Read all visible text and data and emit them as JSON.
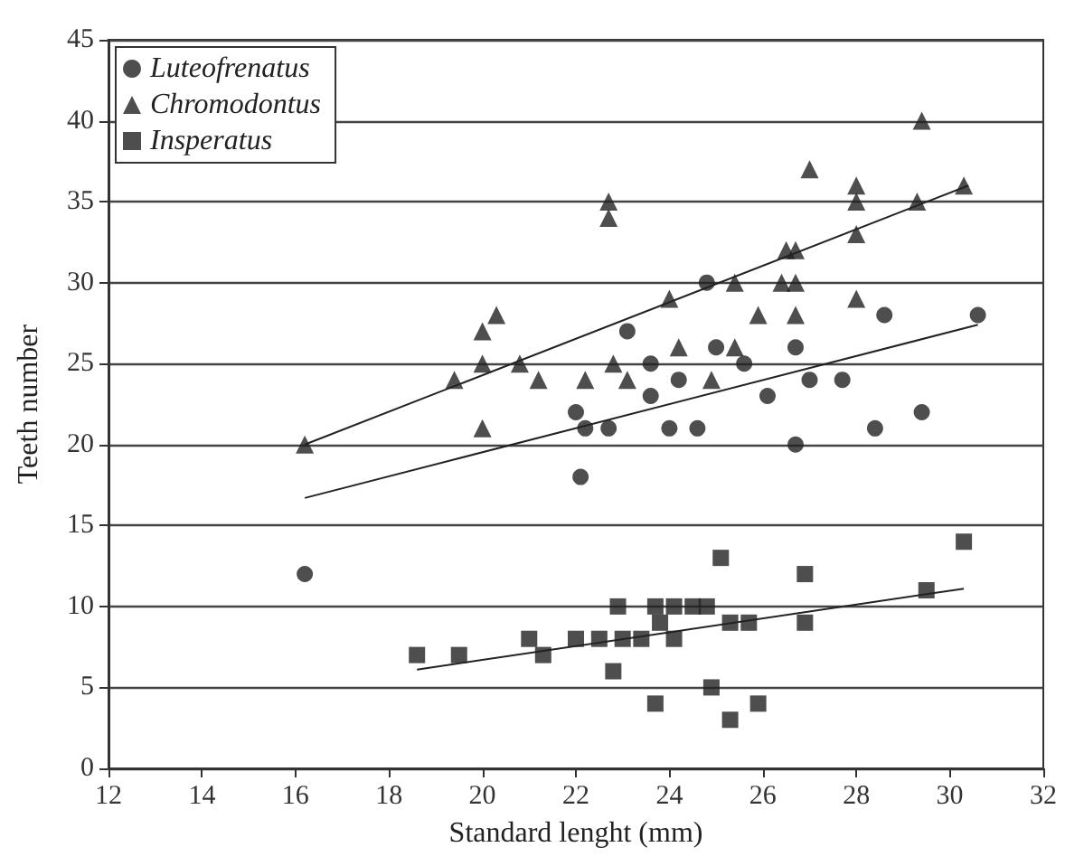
{
  "chart_data": {
    "type": "scatter",
    "xlabel": "Standard lenght (mm)",
    "ylabel": "Teeth number",
    "xlim": [
      12,
      32
    ],
    "xticks": [
      12,
      14,
      16,
      18,
      20,
      22,
      24,
      26,
      28,
      30,
      32
    ],
    "ylim": [
      0,
      45
    ],
    "yticks": [
      0,
      5,
      10,
      15,
      20,
      25,
      30,
      35,
      40,
      45
    ],
    "grid": "y",
    "legend": "top left",
    "series": [
      {
        "name": "Luteofrenatus",
        "type": "scatter",
        "marker": "circle",
        "color": "#222222",
        "x": [
          16.2,
          23.1,
          23.6,
          23.6,
          22.0,
          22.2,
          22.7,
          22.1,
          24.8,
          24.2,
          24.0,
          24.6,
          25.0,
          25.6,
          26.1,
          26.7,
          26.7,
          27.0,
          27.7,
          28.6,
          28.4,
          29.4,
          30.6
        ],
        "values": [
          12,
          27,
          25,
          23,
          22,
          21,
          21,
          18,
          30,
          24,
          21,
          21,
          26,
          25,
          23,
          26,
          20,
          24,
          24,
          28,
          21,
          22,
          28
        ]
      },
      {
        "name": "Chromodontus",
        "type": "scatter",
        "marker": "triangle",
        "color": "#222222",
        "x": [
          16.2,
          19.4,
          20.0,
          20.3,
          20.0,
          20.0,
          20.8,
          21.2,
          22.2,
          22.8,
          22.7,
          22.7,
          23.1,
          24.0,
          24.2,
          24.9,
          25.4,
          25.4,
          25.9,
          26.4,
          26.7,
          26.5,
          26.7,
          26.7,
          27.0,
          28.0,
          28.0,
          28.0,
          28.0,
          29.3,
          29.4,
          30.3
        ],
        "values": [
          20,
          24,
          25,
          28,
          27,
          21,
          25,
          24,
          24,
          25,
          35,
          34,
          24,
          29,
          26,
          24,
          26,
          30,
          28,
          30,
          30,
          32,
          32,
          28,
          37,
          29,
          33,
          35,
          36,
          35,
          40,
          36
        ]
      },
      {
        "name": "Insperatus",
        "type": "scatter",
        "marker": "square",
        "color": "#222222",
        "x": [
          18.6,
          19.5,
          21.0,
          21.3,
          22.0,
          22.5,
          22.9,
          22.8,
          23.0,
          23.4,
          23.7,
          23.7,
          23.8,
          24.1,
          24.1,
          24.5,
          24.8,
          24.9,
          25.1,
          25.3,
          25.3,
          25.7,
          25.9,
          26.9,
          26.9,
          29.5,
          30.3
        ],
        "values": [
          7,
          7,
          8,
          7,
          8,
          8,
          10,
          6,
          8,
          8,
          10,
          4,
          9,
          10,
          8,
          10,
          10,
          5,
          13,
          9,
          3,
          9,
          4,
          12,
          9,
          11,
          14
        ]
      },
      {
        "type": "line",
        "marker": "none",
        "color": "#222222",
        "x": [
          16.2,
          30.4
        ],
        "values": [
          20,
          36
        ]
      },
      {
        "type": "line",
        "marker": "none",
        "color": "#222222",
        "x": [
          16.2,
          30.6
        ],
        "values": [
          16.7,
          27.4
        ]
      },
      {
        "type": "line",
        "marker": "none",
        "color": "#222222",
        "x": [
          18.6,
          30.3
        ],
        "values": [
          6.1,
          11.1
        ]
      }
    ]
  }
}
